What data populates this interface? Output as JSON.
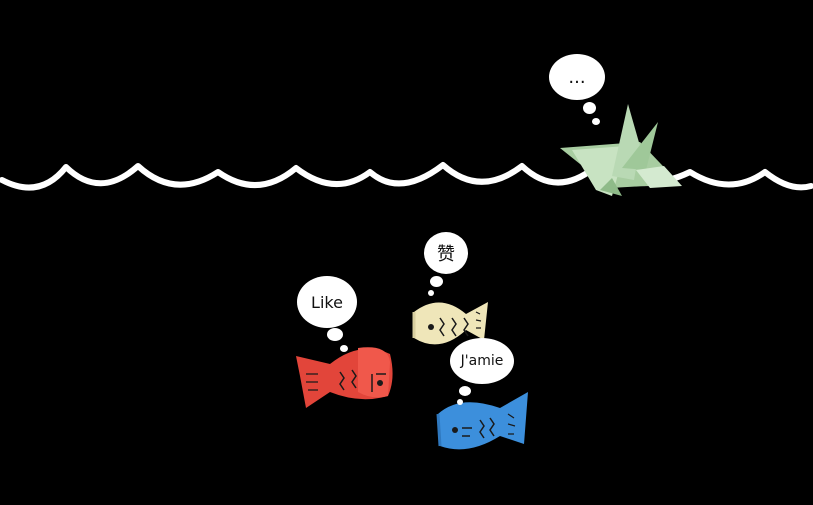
{
  "colors": {
    "background": "#000000",
    "wave": "#ffffff",
    "bubble_fill": "#ffffff",
    "bubble_text": "#111111",
    "crane_green": "#b9d9b4",
    "fish_red": "#e2453a",
    "fish_cream": "#efe6b9",
    "fish_blue": "#3c8fdc",
    "ink": "#1a1a1a"
  },
  "bubbles": {
    "crane": {
      "text": "..."
    },
    "red_fish": {
      "text": "Like"
    },
    "cream_fish": {
      "text": "赞"
    },
    "blue_fish": {
      "text": "J'amie"
    }
  },
  "figures": {
    "crane": {
      "icon": "origami-crane-icon"
    },
    "red_fish": {
      "icon": "paper-fish-icon"
    },
    "cream_fish": {
      "icon": "paper-fish-icon"
    },
    "blue_fish": {
      "icon": "paper-fish-icon"
    }
  }
}
